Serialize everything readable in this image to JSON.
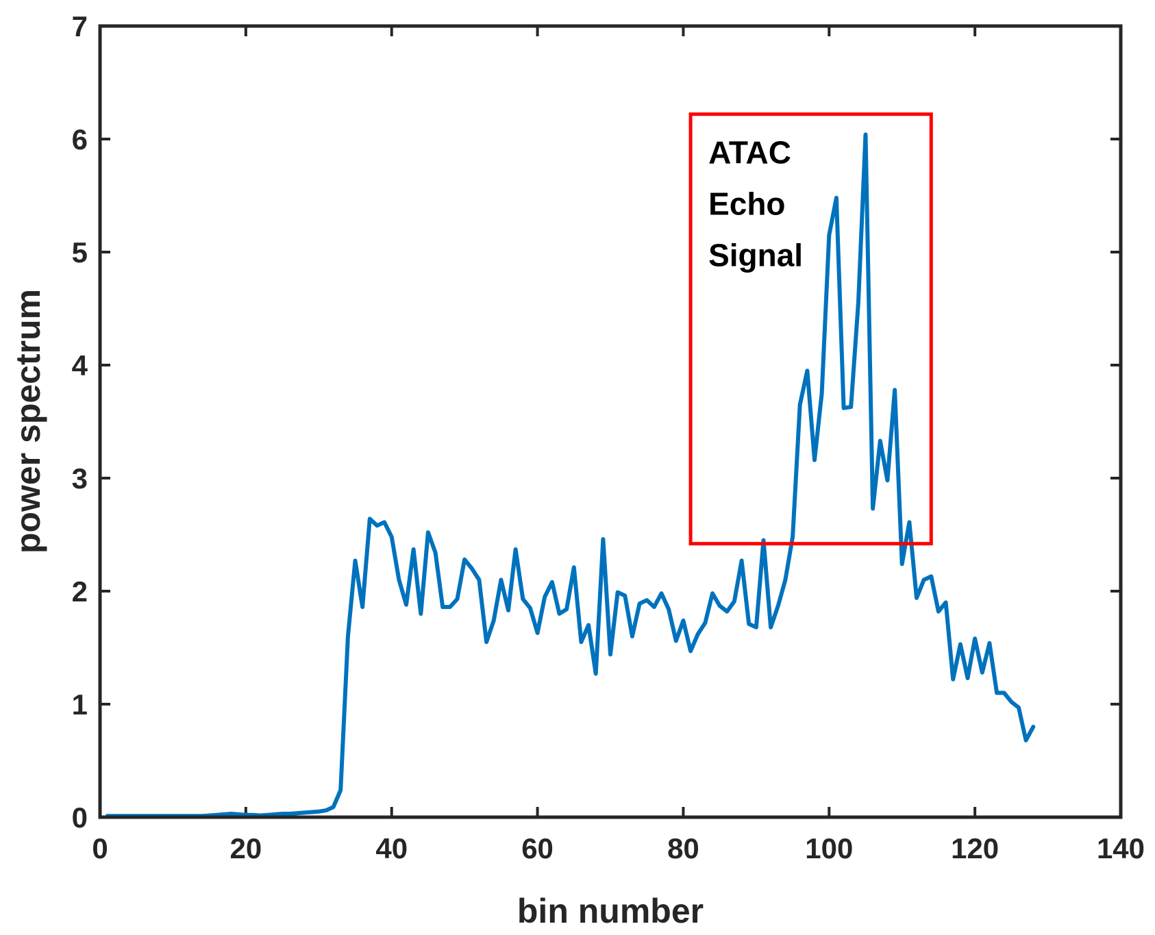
{
  "chart_data": {
    "type": "line",
    "title": "",
    "xlabel": "bin number",
    "ylabel": "power spectrum",
    "xlim": [
      0,
      140
    ],
    "ylim": [
      0,
      7
    ],
    "xticks": [
      "0",
      "20",
      "40",
      "60",
      "80",
      "100",
      "120",
      "140"
    ],
    "yticks": [
      "0",
      "1",
      "2",
      "3",
      "4",
      "5",
      "6",
      "7"
    ],
    "grid": false,
    "legend": "none",
    "line_color": "#0072BD",
    "series": [
      {
        "x": [
          1,
          2,
          3,
          4,
          5,
          6,
          7,
          8,
          9,
          10,
          11,
          12,
          13,
          14,
          15,
          16,
          17,
          18,
          19,
          20,
          21,
          22,
          23,
          24,
          25,
          26,
          27,
          28,
          29,
          30,
          31,
          32,
          33,
          34,
          35,
          36,
          37,
          38,
          39,
          40,
          41,
          42,
          43,
          44,
          45,
          46,
          47,
          48,
          49,
          50,
          51,
          52,
          53,
          54,
          55,
          56,
          57,
          58,
          59,
          60,
          61,
          62,
          63,
          64,
          65,
          66,
          67,
          68,
          69,
          70,
          71,
          72,
          73,
          74,
          75,
          76,
          77,
          78,
          79,
          80,
          81,
          82,
          83,
          84,
          85,
          86,
          87,
          88,
          89,
          90,
          91,
          92,
          93,
          94,
          95,
          96,
          97,
          98,
          99,
          100,
          101,
          102,
          103,
          104,
          105,
          106,
          107,
          108,
          109,
          110,
          111,
          112,
          113,
          114,
          115,
          116,
          117,
          118,
          119,
          120,
          121,
          122,
          123,
          124,
          125,
          126,
          127,
          128
        ],
        "values": [
          0.01,
          0.01,
          0.01,
          0.01,
          0.01,
          0.01,
          0.01,
          0.01,
          0.01,
          0.01,
          0.01,
          0.01,
          0.01,
          0.01,
          0.015,
          0.02,
          0.025,
          0.03,
          0.025,
          0.02,
          0.02,
          0.015,
          0.02,
          0.025,
          0.03,
          0.03,
          0.035,
          0.04,
          0.045,
          0.05,
          0.06,
          0.09,
          0.24,
          1.6,
          2.27,
          1.86,
          2.64,
          2.58,
          2.61,
          2.48,
          2.1,
          1.88,
          2.37,
          1.8,
          2.52,
          2.34,
          1.86,
          1.86,
          1.93,
          2.28,
          2.2,
          2.1,
          1.55,
          1.74,
          2.1,
          1.83,
          2.37,
          1.93,
          1.85,
          1.63,
          1.95,
          2.08,
          1.8,
          1.84,
          2.21,
          1.55,
          1.7,
          1.27,
          2.46,
          1.44,
          1.99,
          1.96,
          1.6,
          1.89,
          1.92,
          1.86,
          1.98,
          1.84,
          1.56,
          1.74,
          1.47,
          1.62,
          1.72,
          1.98,
          1.87,
          1.82,
          1.91,
          2.27,
          1.71,
          1.68,
          2.45,
          1.68,
          1.87,
          2.1,
          2.48,
          3.65,
          3.95,
          3.16,
          3.75,
          5.15,
          5.48,
          3.62,
          3.63,
          4.55,
          6.04,
          2.73,
          3.33,
          2.98,
          3.78,
          2.24,
          2.61,
          1.94,
          2.1,
          2.13,
          1.82,
          1.9,
          1.22,
          1.53,
          1.23,
          1.58,
          1.28,
          1.54,
          1.1,
          1.1,
          1.02,
          0.97,
          0.68,
          0.8
        ]
      }
    ],
    "annotation": {
      "box": {
        "x0": 81,
        "x1": 114,
        "y0": 2.42,
        "y1": 6.22
      },
      "color": "#FF0000",
      "lines": [
        "ATAC",
        "Echo",
        "Signal"
      ]
    }
  }
}
